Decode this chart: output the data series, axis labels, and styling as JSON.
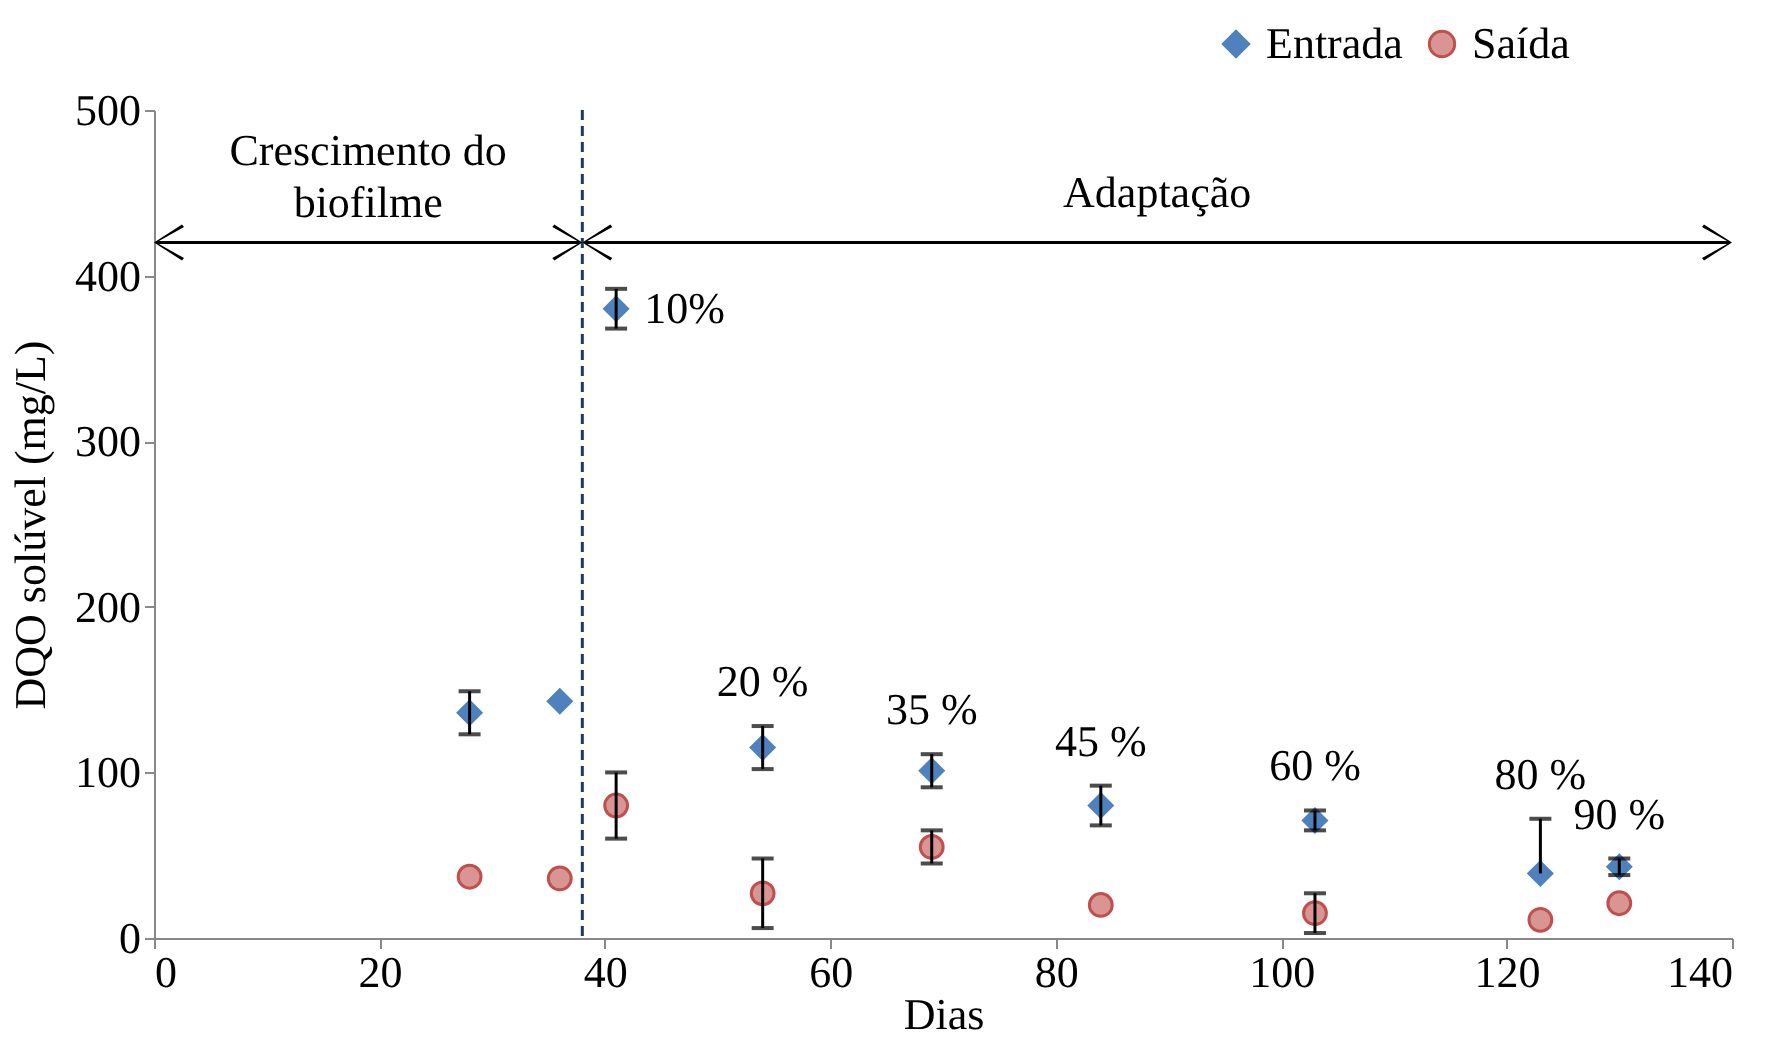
{
  "chart_data": {
    "type": "scatter",
    "xlabel": "Dias",
    "ylabel": "DQO solúvel (mg/L)",
    "xlim": [
      0,
      140
    ],
    "xticks": [
      0,
      20,
      40,
      60,
      80,
      100,
      120,
      140
    ],
    "ylim": [
      0,
      500
    ],
    "yticks": [
      0,
      100,
      200,
      300,
      400,
      500
    ],
    "x": [
      28,
      36,
      41,
      54,
      69,
      84,
      103,
      123,
      130
    ],
    "series": [
      {
        "name": "Entrada",
        "color": "#4f81bd",
        "marker": "diamond",
        "values": [
          136,
          143,
          380,
          115,
          101,
          80,
          71,
          39,
          43
        ],
        "errors": [
          13,
          null,
          12,
          13,
          10,
          12,
          6,
          [
            39,
            72
          ],
          5
        ]
      },
      {
        "name": "Saída",
        "color": "#d99594",
        "marker": "circle",
        "values": [
          37,
          36,
          80,
          27,
          55,
          20,
          15,
          11,
          21
        ],
        "errors": [
          null,
          null,
          20,
          21,
          10,
          null,
          12,
          null,
          null
        ]
      }
    ],
    "ref_lines": [
      {
        "axis": "x",
        "value": 38,
        "color": "#1f3864",
        "line_style": "dashed"
      }
    ],
    "annotations": [
      "Crescimento do biofilme",
      "Adaptação",
      {
        "text": "10%",
        "x": 41,
        "y": 380
      },
      {
        "text": "20 %",
        "x": 54,
        "y": 115
      },
      {
        "text": "35 %",
        "x": 69,
        "y": 101
      },
      {
        "text": "45 %",
        "x": 84,
        "y": 80
      },
      {
        "text": "60 %",
        "x": 103,
        "y": 71
      },
      {
        "text": "80 %",
        "x": 123,
        "y": 39
      },
      {
        "text": "90 %",
        "x": 130,
        "y": 43
      }
    ],
    "legend": "top right",
    "grid": false
  }
}
